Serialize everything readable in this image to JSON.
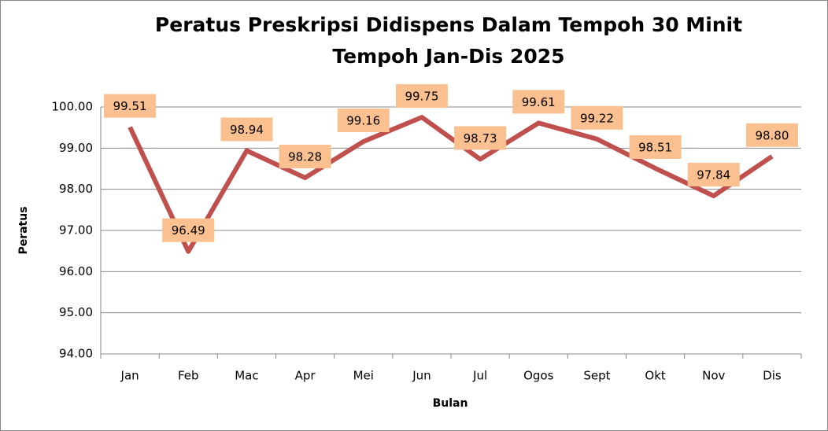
{
  "chart_data": {
    "type": "line",
    "title": [
      "Peratus Preskripsi Didispens Dalam Tempoh 30 Minit",
      "Tempoh Jan-Dis 2025"
    ],
    "x_label": "Bulan",
    "y_label": "Peratus",
    "categories": [
      "Jan",
      "Feb",
      "Mac",
      "Apr",
      "Mei",
      "Jun",
      "Jul",
      "Ogos",
      "Sept",
      "Okt",
      "Nov",
      "Dis"
    ],
    "series": [
      {
        "name": "Peratus",
        "color": "#c0504d",
        "values": [
          99.51,
          96.49,
          98.94,
          98.28,
          99.16,
          99.75,
          98.73,
          99.61,
          99.22,
          98.51,
          97.84,
          98.8
        ],
        "value_labels": [
          "99.51",
          "96.49",
          "98.94",
          "98.28",
          "99.16",
          "99.75",
          "98.73",
          "99.61",
          "99.22",
          "98.51",
          "97.84",
          "98.80"
        ]
      }
    ],
    "label_color": "#fac090",
    "ylim": [
      94,
      100
    ],
    "yticks": [
      {
        "value": 94,
        "label": "94.00"
      },
      {
        "value": 95,
        "label": "95.00"
      },
      {
        "value": 96,
        "label": "96.00"
      },
      {
        "value": 97,
        "label": "97.00"
      },
      {
        "value": 98,
        "label": "98.00"
      },
      {
        "value": 99,
        "label": "99.00"
      },
      {
        "value": 100,
        "label": "100.00"
      }
    ],
    "grid": true
  }
}
